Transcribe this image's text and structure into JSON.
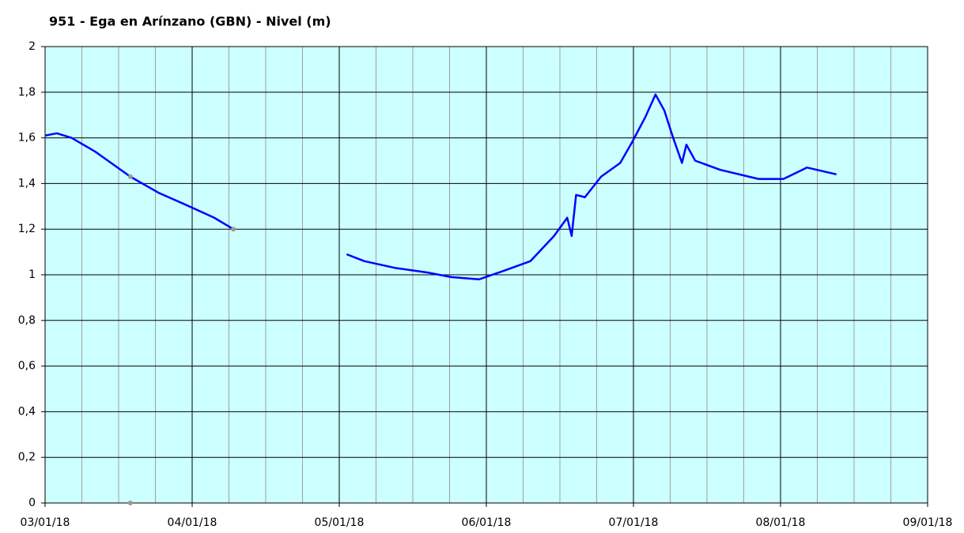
{
  "chart_data": {
    "type": "line",
    "title": "951 - Ega en Arínzano (GBN) - Nivel (m)",
    "series": [
      {
        "color": "#0000ff",
        "mode": "line",
        "x": [
          0,
          0.08,
          0.18,
          0.34,
          0.58,
          0.77,
          0.98,
          1.15,
          1.28,
          null,
          2.05,
          2.17,
          2.38,
          2.6,
          2.76,
          2.95,
          3.13,
          3.3,
          3.46,
          3.55,
          3.58,
          3.61,
          3.67,
          3.78,
          3.91,
          3.99,
          4.08,
          4.15,
          4.21,
          4.27,
          4.33,
          4.36,
          4.42,
          4.59,
          4.85,
          5.02,
          5.18,
          5.38
        ],
        "values": [
          1.61,
          1.62,
          1.6,
          1.54,
          1.43,
          1.36,
          1.3,
          1.25,
          1.2,
          null,
          1.09,
          1.06,
          1.03,
          1.01,
          0.99,
          0.98,
          1.02,
          1.06,
          1.17,
          1.25,
          1.17,
          1.35,
          1.34,
          1.43,
          1.49,
          1.58,
          1.69,
          1.79,
          1.72,
          1.6,
          1.49,
          1.57,
          1.5,
          1.46,
          1.42,
          1.42,
          1.47,
          1.44
        ]
      },
      {
        "color": "#999999",
        "mode": "markers",
        "x": [
          0.58,
          1.28,
          0.58
        ],
        "values": [
          1.43,
          1.2,
          0
        ]
      }
    ],
    "xlim": [
      0,
      6
    ],
    "xticks": [
      {
        "value": 0,
        "label": "03/01/18"
      },
      {
        "value": 1,
        "label": "04/01/18"
      },
      {
        "value": 2,
        "label": "05/01/18"
      },
      {
        "value": 3,
        "label": "06/01/18"
      },
      {
        "value": 4,
        "label": "07/01/18"
      },
      {
        "value": 5,
        "label": "08/01/18"
      },
      {
        "value": 6,
        "label": "09/01/18"
      }
    ],
    "xminor": 4,
    "ylim": [
      0,
      2
    ],
    "yticks": [
      0,
      {
        "value": 0.2,
        "label": "0,2"
      },
      {
        "value": 0.4,
        "label": "0,4"
      },
      {
        "value": 0.6,
        "label": "0,6"
      },
      {
        "value": 0.8,
        "label": "0,8"
      },
      1,
      {
        "value": 1.2,
        "label": "1,2"
      },
      {
        "value": 1.4,
        "label": "1,4"
      },
      {
        "value": 1.6,
        "label": "1,6"
      },
      {
        "value": 1.8,
        "label": "1,8"
      },
      2
    ],
    "grid": true,
    "background": "#ccffff"
  }
}
